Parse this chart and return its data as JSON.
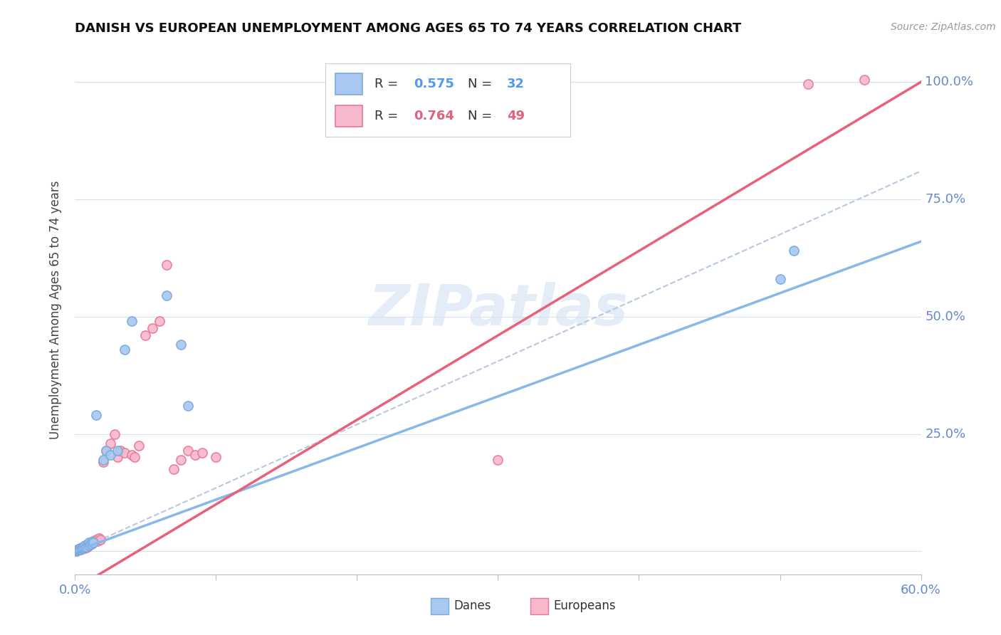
{
  "title": "DANISH VS EUROPEAN UNEMPLOYMENT AMONG AGES 65 TO 74 YEARS CORRELATION CHART",
  "source": "Source: ZipAtlas.com",
  "xlim": [
    0.0,
    0.6
  ],
  "ylim": [
    -0.05,
    1.08
  ],
  "danes_R": 0.575,
  "danes_N": 32,
  "euros_R": 0.764,
  "euros_N": 49,
  "danes_color": "#a8c8f0",
  "danes_edge_color": "#7aaae0",
  "euros_color": "#f8b8cc",
  "euros_edge_color": "#e87898",
  "danes_line_color": "#88b8e8",
  "euros_line_color": "#e8607a",
  "ref_line_color": "#b8c8e0",
  "ylabel_right_color": "#6888cc",
  "xlabel_color": "#6888cc",
  "watermark_text": "ZIPatlas",
  "watermark_color": "#d8e4f4",
  "danes_line_intercept": 0.0,
  "danes_line_slope": 1.1,
  "euros_line_intercept": -0.08,
  "euros_line_slope": 1.8,
  "ref_line_intercept": 0.0,
  "ref_line_slope": 1.35,
  "danes_x": [
    0.001,
    0.002,
    0.002,
    0.003,
    0.003,
    0.004,
    0.004,
    0.005,
    0.005,
    0.006,
    0.006,
    0.007,
    0.007,
    0.008,
    0.009,
    0.01,
    0.01,
    0.011,
    0.012,
    0.013,
    0.015,
    0.02,
    0.022,
    0.025,
    0.03,
    0.035,
    0.04,
    0.065,
    0.075,
    0.08,
    0.5,
    0.51
  ],
  "danes_y": [
    0.001,
    0.002,
    0.003,
    0.003,
    0.005,
    0.004,
    0.006,
    0.005,
    0.008,
    0.006,
    0.01,
    0.008,
    0.012,
    0.01,
    0.015,
    0.012,
    0.018,
    0.015,
    0.02,
    0.018,
    0.29,
    0.195,
    0.215,
    0.205,
    0.215,
    0.43,
    0.49,
    0.545,
    0.44,
    0.31,
    0.58,
    0.64
  ],
  "euros_x": [
    0.001,
    0.001,
    0.002,
    0.002,
    0.003,
    0.003,
    0.004,
    0.004,
    0.005,
    0.005,
    0.006,
    0.007,
    0.007,
    0.008,
    0.008,
    0.009,
    0.01,
    0.01,
    0.011,
    0.012,
    0.013,
    0.014,
    0.015,
    0.016,
    0.017,
    0.018,
    0.02,
    0.022,
    0.025,
    0.028,
    0.03,
    0.032,
    0.035,
    0.04,
    0.042,
    0.045,
    0.05,
    0.055,
    0.06,
    0.065,
    0.07,
    0.075,
    0.08,
    0.085,
    0.09,
    0.1,
    0.3,
    0.52,
    0.56
  ],
  "euros_y": [
    0.001,
    0.002,
    0.002,
    0.004,
    0.003,
    0.005,
    0.004,
    0.006,
    0.005,
    0.008,
    0.006,
    0.007,
    0.01,
    0.008,
    0.012,
    0.01,
    0.015,
    0.012,
    0.018,
    0.015,
    0.022,
    0.02,
    0.025,
    0.022,
    0.028,
    0.025,
    0.19,
    0.215,
    0.23,
    0.25,
    0.2,
    0.215,
    0.21,
    0.205,
    0.2,
    0.225,
    0.46,
    0.475,
    0.49,
    0.61,
    0.175,
    0.195,
    0.215,
    0.205,
    0.21,
    0.2,
    0.195,
    0.995,
    1.005
  ]
}
